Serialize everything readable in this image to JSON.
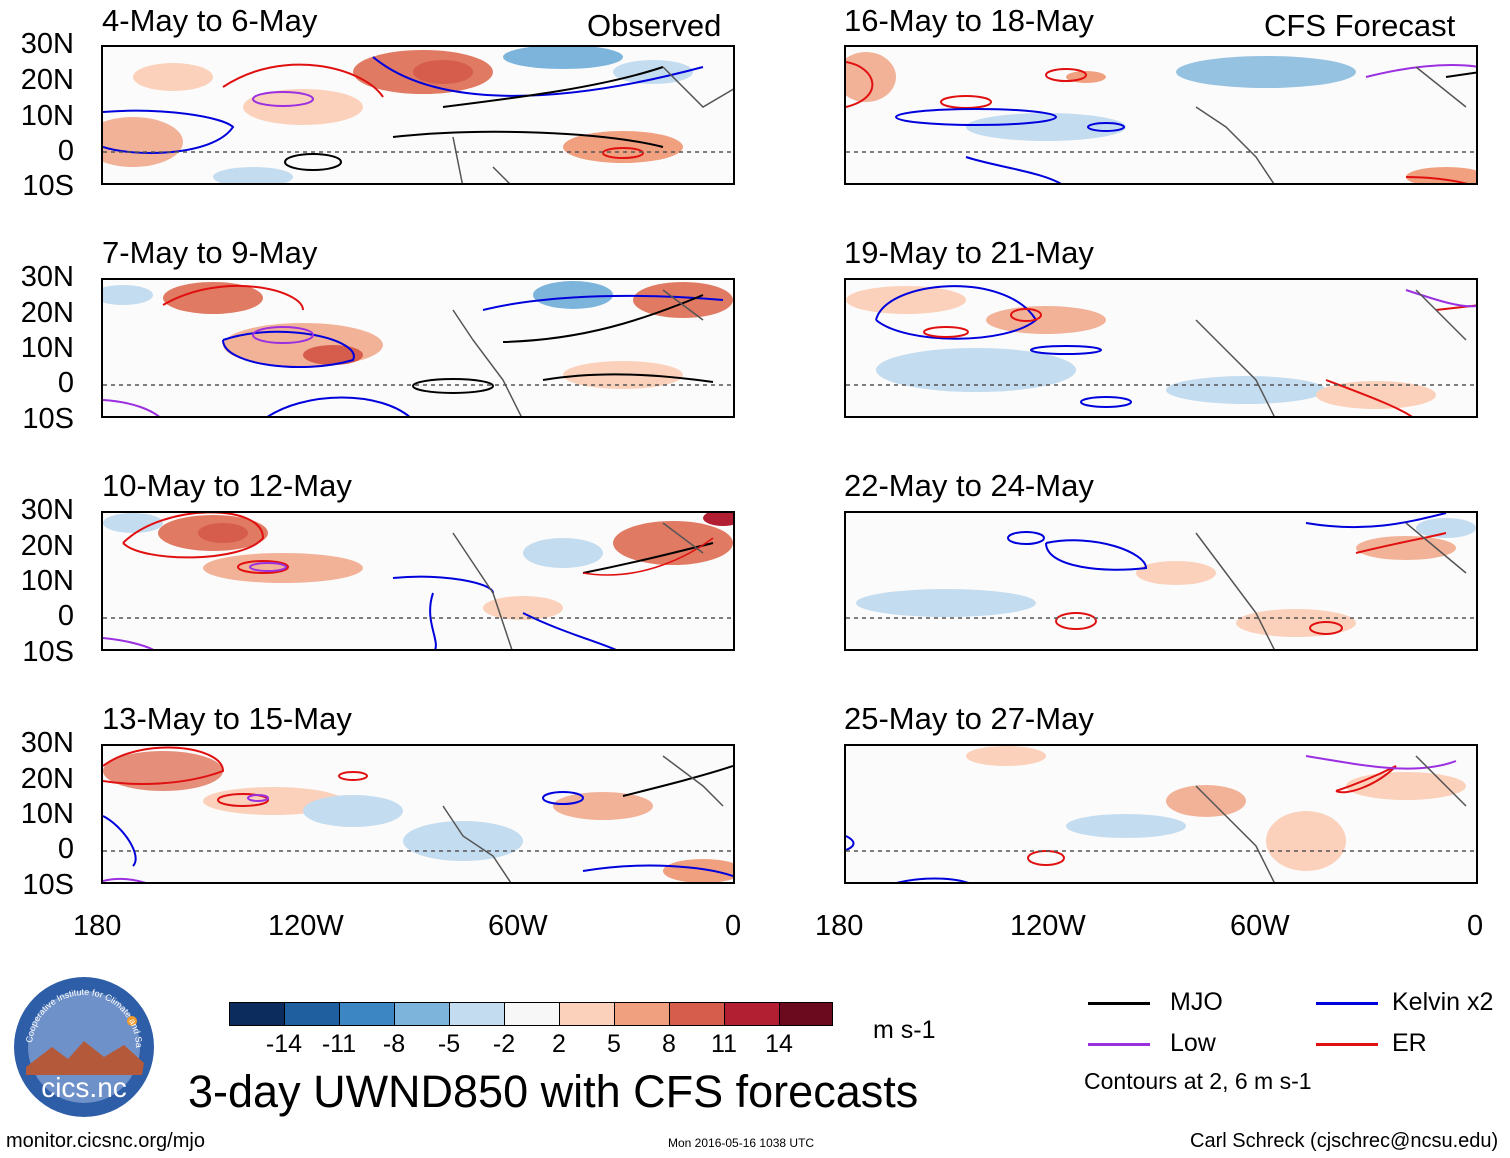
{
  "column_titles": {
    "left": "Observed",
    "right": "CFS Forecast"
  },
  "panels": [
    {
      "title": "4-May to 6-May"
    },
    {
      "title": "7-May to 9-May"
    },
    {
      "title": "10-May to 12-May"
    },
    {
      "title": "13-May to 15-May"
    },
    {
      "title": "16-May to 18-May"
    },
    {
      "title": "19-May to 21-May"
    },
    {
      "title": "22-May to 24-May"
    },
    {
      "title": "25-May to 27-May"
    }
  ],
  "lat_labels": [
    "30N",
    "20N",
    "10N",
    "0",
    "10S"
  ],
  "lon_labels": [
    "180",
    "120W",
    "60W",
    "0"
  ],
  "colorbar": {
    "unit": "m s-1",
    "labels": [
      "-14",
      "-11",
      "-8",
      "-5",
      "-2",
      "2",
      "5",
      "8",
      "11",
      "14"
    ],
    "colors": [
      "#0d2c5e",
      "#1f5fa0",
      "#3b86c3",
      "#7db4db",
      "#c4dcef",
      "#f7f7f7",
      "#fbd1bb",
      "#f0a07f",
      "#d65d4c",
      "#b21e32",
      "#6b0a1f"
    ]
  },
  "legend": {
    "items": [
      {
        "label": "MJO",
        "color": "#000000"
      },
      {
        "label": "Kelvin x2",
        "color": "#0000dd"
      },
      {
        "label": "Low",
        "color": "#9b30e0"
      },
      {
        "label": "ER",
        "color": "#e01010"
      }
    ],
    "note": "Contours at 2, 6 m s-1"
  },
  "logo": {
    "text": "cics.nc",
    "ring_text": "Cooperative Institute for Climate and Satellites"
  },
  "main_title": "3-day UWND850 with CFS forecasts",
  "footer": {
    "url": "monitor.cicsnc.org/mjo",
    "timestamp": "Mon 2016-05-16 1038 UTC",
    "credit": "Carl Schreck (cjschrec@ncsu.edu)"
  }
}
